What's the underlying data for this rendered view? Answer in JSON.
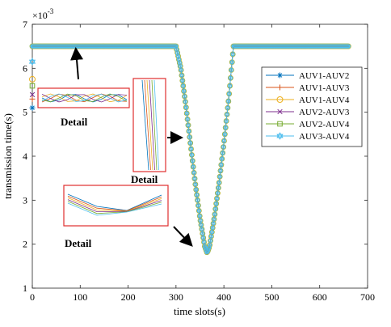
{
  "chart_data": {
    "type": "line",
    "title": "",
    "xlabel": "time slots(s)",
    "ylabel": "transmission time(s)",
    "y_scale_label": "×10",
    "y_scale_exponent": "-3",
    "xlim": [
      0,
      700
    ],
    "ylim": [
      1,
      7
    ],
    "x_ticks": [
      "0",
      "100",
      "200",
      "300",
      "400",
      "500",
      "600",
      "700"
    ],
    "y_ticks": [
      "1",
      "2",
      "3",
      "4",
      "5",
      "6",
      "7"
    ],
    "grid": false,
    "legend_position": "right",
    "series": [
      {
        "name": "AUV1-AUV2",
        "color": "#0072BD",
        "marker": "asterisk"
      },
      {
        "name": "AUV1-AUV3",
        "color": "#D95319",
        "marker": "plus"
      },
      {
        "name": "AUV1-AUV4",
        "color": "#EDB120",
        "marker": "circle"
      },
      {
        "name": "AUV2-AUV3",
        "color": "#7E2F8E",
        "marker": "cross"
      },
      {
        "name": "AUV2-AUV4",
        "color": "#77AC30",
        "marker": "square"
      },
      {
        "name": "AUV3-AUV4",
        "color": "#4DBEEE",
        "marker": "hexagram"
      }
    ],
    "shared_curve": {
      "x": [
        0,
        300,
        310,
        320,
        330,
        340,
        350,
        360,
        365,
        370,
        380,
        390,
        400,
        410,
        420,
        660
      ],
      "y": [
        6.5,
        6.5,
        6.0,
        5.2,
        4.3,
        3.4,
        2.6,
        1.95,
        1.8,
        1.95,
        2.6,
        3.4,
        4.3,
        5.3,
        6.5,
        6.5
      ]
    },
    "start_points": [
      {
        "series": "AUV1-AUV2",
        "y": 5.1
      },
      {
        "series": "AUV1-AUV3",
        "y": 5.3
      },
      {
        "series": "AUV1-AUV4",
        "y": 5.75
      },
      {
        "series": "AUV2-AUV3",
        "y": 5.4
      },
      {
        "series": "AUV2-AUV4",
        "y": 5.6
      },
      {
        "series": "AUV3-AUV4",
        "y": 6.15
      }
    ],
    "annotations": [
      {
        "label": "Detail",
        "target": "flat-region"
      },
      {
        "label": "Detail",
        "target": "descending-edge"
      },
      {
        "label": "Detail",
        "target": "minimum"
      }
    ]
  }
}
